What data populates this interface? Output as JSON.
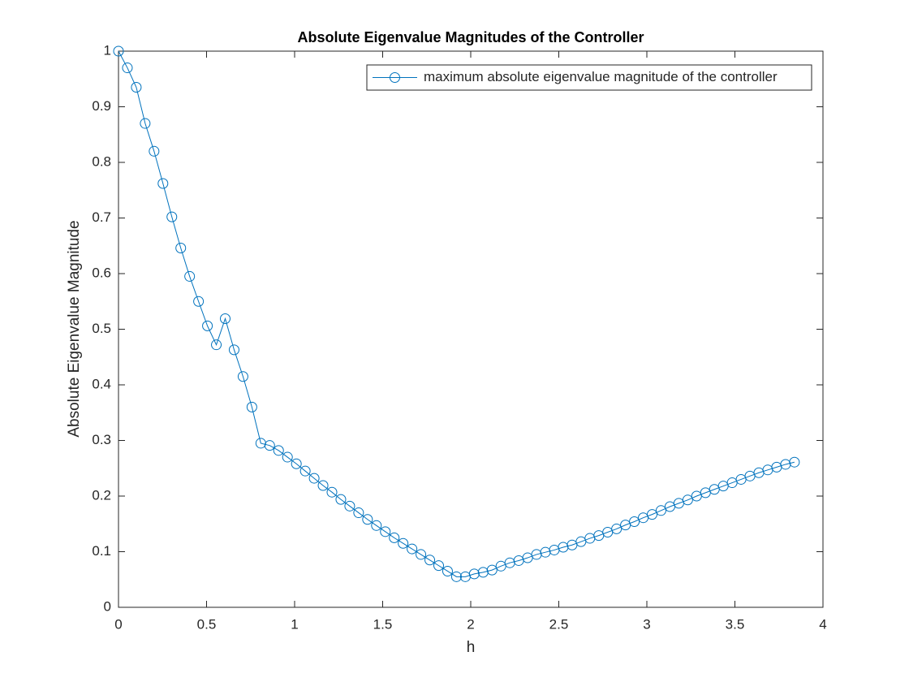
{
  "chart_data": {
    "type": "line",
    "title": "Absolute Eigenvalue Magnitudes of the Controller",
    "x_label": "h",
    "y_label": "Absolute Eigenvalue Magnitude",
    "x": [
      0,
      0.0505,
      0.101,
      0.1515,
      0.202,
      0.2525,
      0.303,
      0.3535,
      0.404,
      0.4545,
      0.505,
      0.5555,
      0.606,
      0.6565,
      0.707,
      0.7575,
      0.808,
      0.8585,
      0.909,
      0.9595,
      1.01,
      1.0605,
      1.111,
      1.1615,
      1.212,
      1.2625,
      1.313,
      1.3635,
      1.414,
      1.4645,
      1.515,
      1.5655,
      1.616,
      1.6665,
      1.717,
      1.7675,
      1.818,
      1.8685,
      1.919,
      1.9695,
      2.02,
      2.0705,
      2.121,
      2.1715,
      2.222,
      2.2725,
      2.323,
      2.3735,
      2.424,
      2.4745,
      2.525,
      2.5755,
      2.626,
      2.6765,
      2.727,
      2.7775,
      2.828,
      2.8785,
      2.929,
      2.9795,
      3.03,
      3.0805,
      3.131,
      3.1815,
      3.232,
      3.2825,
      3.333,
      3.3835,
      3.434,
      3.4845,
      3.535,
      3.5855,
      3.636,
      3.6865,
      3.737,
      3.7875,
      3.838
    ],
    "series": [
      {
        "name": "maximum absolute eigenvalue magnitude of the controller",
        "color": "#0072BD",
        "marker": "circle",
        "values": [
          1.0,
          0.97,
          0.935,
          0.87,
          0.82,
          0.762,
          0.702,
          0.646,
          0.595,
          0.55,
          0.506,
          0.472,
          0.519,
          0.463,
          0.415,
          0.36,
          0.295,
          0.291,
          0.282,
          0.27,
          0.258,
          0.245,
          0.232,
          0.219,
          0.207,
          0.194,
          0.182,
          0.17,
          0.158,
          0.147,
          0.136,
          0.125,
          0.115,
          0.105,
          0.095,
          0.085,
          0.075,
          0.065,
          0.055,
          0.055,
          0.06,
          0.063,
          0.067,
          0.074,
          0.08,
          0.084,
          0.089,
          0.095,
          0.099,
          0.103,
          0.108,
          0.112,
          0.118,
          0.124,
          0.129,
          0.135,
          0.141,
          0.148,
          0.154,
          0.161,
          0.167,
          0.174,
          0.181,
          0.187,
          0.193,
          0.2,
          0.206,
          0.212,
          0.218,
          0.224,
          0.23,
          0.236,
          0.242,
          0.247,
          0.252,
          0.257,
          0.261
        ]
      }
    ],
    "xlim": [
      0,
      4
    ],
    "xticks": [
      0,
      0.5,
      1,
      1.5,
      2,
      2.5,
      3,
      3.5,
      4
    ],
    "ylim": [
      0,
      1
    ],
    "yticks": [
      0,
      0.1,
      0.2,
      0.3,
      0.4,
      0.5,
      0.6,
      0.7,
      0.8,
      0.9,
      1
    ],
    "grid": false,
    "legend": "northeast"
  }
}
